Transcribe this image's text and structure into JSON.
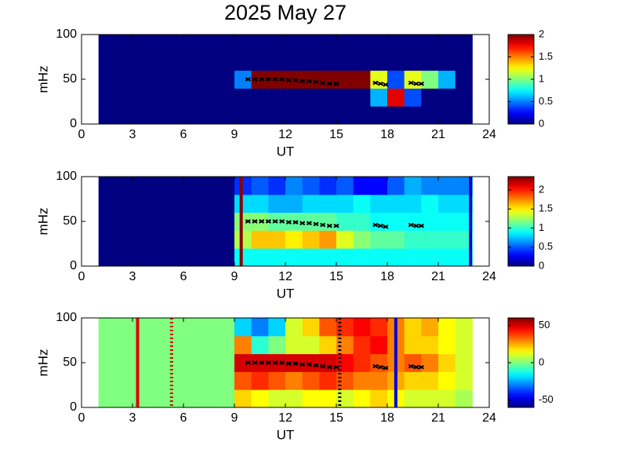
{
  "chart_data": [
    {
      "type": "heatmap",
      "title": "2025 May 27",
      "xlabel": "UT",
      "ylabel": "mHz",
      "xlim": [
        0,
        24
      ],
      "xticks": [
        0,
        3,
        6,
        9,
        12,
        15,
        18,
        21,
        24
      ],
      "ylim": [
        0,
        100
      ],
      "yticks": [
        0,
        50,
        100
      ],
      "colormap": "jet",
      "zlim": [
        0,
        2
      ],
      "zticks": [
        0,
        0.5,
        1,
        1.5,
        2
      ],
      "x_bins": [
        1,
        2,
        3,
        4,
        5,
        6,
        7,
        8,
        9,
        10,
        11,
        12,
        13,
        14,
        15,
        16,
        17,
        18,
        19,
        20,
        21,
        22,
        23
      ],
      "y_bins": [
        0,
        20,
        40,
        60,
        80,
        100
      ],
      "z": [
        [
          0,
          0,
          0,
          0,
          0,
          0,
          0,
          0,
          0,
          0,
          0,
          0,
          0,
          0,
          0,
          0,
          0,
          0,
          0,
          0,
          0,
          0
        ],
        [
          0,
          0,
          0,
          0,
          0,
          0,
          0,
          0,
          0,
          0,
          0,
          0,
          0,
          0,
          0,
          0,
          0.6,
          1.8,
          0.4,
          0,
          0,
          0
        ],
        [
          0,
          0,
          0,
          0,
          0,
          0,
          0,
          0,
          0.5,
          2,
          2,
          2,
          2,
          2,
          2,
          2,
          1.2,
          0.4,
          1.2,
          1.0,
          0.6,
          0
        ],
        [
          0,
          0,
          0,
          0,
          0,
          0,
          0,
          0,
          0,
          0,
          0,
          0,
          0,
          0,
          0,
          0,
          0,
          0,
          0,
          0,
          0,
          0
        ],
        [
          0,
          0,
          0,
          0,
          0,
          0,
          0,
          0,
          0,
          0,
          0,
          0,
          0,
          0,
          0,
          0,
          0,
          0,
          0,
          0,
          0,
          0
        ]
      ],
      "lines": [],
      "markers": {
        "color": "#000000",
        "x": [
          9.8,
          10.2,
          10.6,
          11,
          11.4,
          11.8,
          12.2,
          12.6,
          13,
          13.4,
          13.8,
          14.2,
          14.6,
          15,
          17.3,
          17.6,
          17.9,
          19.4,
          19.7,
          20
        ],
        "y": [
          50,
          50,
          50,
          50,
          50,
          50,
          49,
          49,
          48,
          48,
          47,
          46,
          45,
          45,
          46,
          45,
          44,
          46,
          45,
          45
        ]
      }
    },
    {
      "type": "heatmap",
      "xlabel": "UT",
      "ylabel": "mHz",
      "xlim": [
        0,
        24
      ],
      "xticks": [
        0,
        3,
        6,
        9,
        12,
        15,
        18,
        21,
        24
      ],
      "ylim": [
        0,
        100
      ],
      "yticks": [
        0,
        50,
        100
      ],
      "colormap": "jet",
      "zlim": [
        0,
        2.35
      ],
      "zticks": [
        0,
        0.5,
        1,
        1.5,
        2
      ],
      "x_bins": [
        1,
        2,
        3,
        4,
        5,
        6,
        7,
        8,
        9,
        10,
        11,
        12,
        13,
        14,
        15,
        16,
        17,
        18,
        19,
        20,
        21,
        22,
        23
      ],
      "y_bins": [
        0,
        20,
        40,
        60,
        80,
        100
      ],
      "z": [
        [
          0,
          0,
          0,
          0,
          0,
          0,
          0,
          0,
          0.9,
          0.9,
          0.9,
          0.9,
          0.9,
          0.9,
          0.9,
          0.9,
          0.9,
          0.9,
          0.9,
          0.9,
          0.9,
          0.9
        ],
        [
          0,
          0,
          0,
          0,
          0,
          0,
          0,
          0,
          1.3,
          1.6,
          1.6,
          1.5,
          1.6,
          1.7,
          1.4,
          1.2,
          1.1,
          1.1,
          1.0,
          1.0,
          1.0,
          1.0
        ],
        [
          0,
          0,
          0,
          0,
          0,
          0,
          0,
          0,
          1.2,
          1.2,
          1.1,
          1.1,
          1.1,
          1.1,
          1.0,
          1.0,
          0.9,
          0.9,
          0.9,
          0.9,
          0.9,
          0.9
        ],
        [
          0,
          0,
          0,
          0,
          0,
          0,
          0,
          0,
          0.8,
          0.8,
          0.7,
          0.7,
          0.8,
          0.8,
          0.8,
          0.9,
          0.8,
          0.8,
          0.8,
          0.9,
          0.8,
          0.8
        ],
        [
          0,
          0,
          0,
          0,
          0,
          0,
          0,
          0,
          0.4,
          0.5,
          0.4,
          0.6,
          0.5,
          0.4,
          0.5,
          0.3,
          0.3,
          0.5,
          0.7,
          0.6,
          0.6,
          0.6
        ]
      ],
      "lines": [
        {
          "x": 9.4,
          "color": "#8b0000",
          "style": "solid"
        },
        {
          "x": 22.9,
          "color": "#0000cc",
          "style": "solid"
        }
      ],
      "markers": {
        "color": "#000000",
        "x": [
          9.8,
          10.2,
          10.6,
          11,
          11.4,
          11.8,
          12.2,
          12.6,
          13,
          13.4,
          13.8,
          14.2,
          14.6,
          15,
          17.3,
          17.6,
          17.9,
          19.4,
          19.7,
          20
        ],
        "y": [
          50,
          50,
          50,
          50,
          50,
          50,
          49,
          49,
          48,
          48,
          47,
          46,
          45,
          45,
          46,
          45,
          44,
          46,
          45,
          45
        ]
      }
    },
    {
      "type": "heatmap",
      "xlabel": "UT",
      "ylabel": "mHz",
      "xlim": [
        0,
        24
      ],
      "xticks": [
        0,
        3,
        6,
        9,
        12,
        15,
        18,
        21,
        24
      ],
      "ylim": [
        0,
        100
      ],
      "yticks": [
        0,
        50,
        100
      ],
      "colormap": "jet",
      "zlim": [
        -60,
        60
      ],
      "zticks": [
        -50,
        0,
        50
      ],
      "x_bins": [
        1,
        2,
        3,
        4,
        5,
        6,
        7,
        8,
        9,
        10,
        11,
        12,
        13,
        14,
        15,
        16,
        17,
        18,
        19,
        20,
        21,
        22,
        23
      ],
      "y_bins": [
        0,
        20,
        40,
        60,
        80,
        100
      ],
      "z": [
        [
          0,
          0,
          0,
          0,
          0,
          0,
          0,
          0,
          20,
          15,
          10,
          10,
          15,
          15,
          10,
          15,
          20,
          15,
          10,
          10,
          10,
          5
        ],
        [
          0,
          0,
          0,
          0,
          0,
          0,
          0,
          0,
          35,
          40,
          35,
          30,
          35,
          40,
          35,
          30,
          30,
          25,
          20,
          20,
          15,
          10
        ],
        [
          0,
          0,
          0,
          0,
          0,
          0,
          0,
          0,
          50,
          50,
          50,
          50,
          50,
          50,
          45,
          40,
          35,
          30,
          35,
          30,
          20,
          10
        ],
        [
          0,
          0,
          0,
          0,
          0,
          0,
          0,
          0,
          30,
          -10,
          0,
          10,
          10,
          20,
          30,
          40,
          45,
          30,
          20,
          20,
          15,
          10
        ],
        [
          0,
          0,
          0,
          0,
          0,
          0,
          0,
          0,
          -20,
          -30,
          -20,
          10,
          20,
          35,
          40,
          45,
          40,
          30,
          20,
          25,
          15,
          10
        ]
      ],
      "lines": [
        {
          "x": 3.3,
          "color": "#dd0000",
          "style": "solid"
        },
        {
          "x": 5.3,
          "color": "#dd0000",
          "style": "dotted"
        },
        {
          "x": 15.2,
          "color": "#000000",
          "style": "dotted"
        },
        {
          "x": 18.5,
          "color": "#0000dd",
          "style": "solid"
        }
      ],
      "markers": {
        "color": "#000000",
        "x": [
          9.8,
          10.2,
          10.6,
          11,
          11.4,
          11.8,
          12.2,
          12.6,
          13,
          13.4,
          13.8,
          14.2,
          14.6,
          15,
          17.3,
          17.6,
          17.9,
          19.4,
          19.7,
          20
        ],
        "y": [
          50,
          50,
          50,
          50,
          50,
          50,
          49,
          49,
          48,
          48,
          47,
          46,
          45,
          45,
          46,
          45,
          44,
          46,
          45,
          45
        ]
      }
    }
  ]
}
